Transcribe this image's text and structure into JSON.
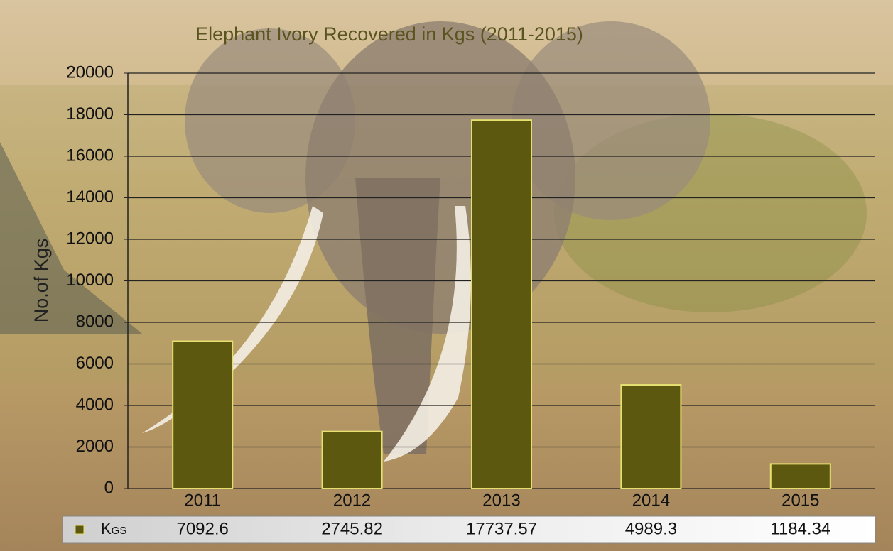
{
  "chart_data": {
    "type": "bar",
    "title": "Elephant Ivory Recovered in Kgs (2011-2015)",
    "y_label": "No.of Kgs",
    "categories": [
      "2011",
      "2012",
      "2013",
      "2014",
      "2015"
    ],
    "series": [
      {
        "name": "Kgs",
        "color": "#5c5810",
        "edge_color": "#e6e070",
        "values": [
          7092.6,
          2745.82,
          17737.57,
          4989.3,
          1184.34
        ]
      }
    ],
    "ylim": [
      0,
      20000
    ],
    "yticks": [
      0,
      2000,
      4000,
      6000,
      8000,
      10000,
      12000,
      14000,
      16000,
      18000,
      20000
    ],
    "grid": true
  }
}
